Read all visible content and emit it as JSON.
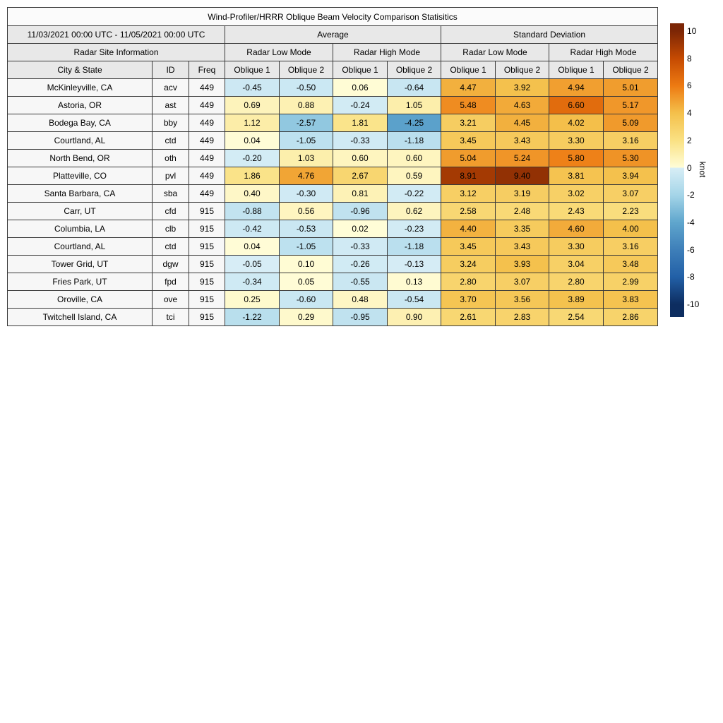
{
  "chart_data": {
    "type": "heatmap",
    "title": "Wind-Profiler/HRRR Oblique Beam Velocity Comparison Statisitics",
    "period": "11/03/2021 00:00 UTC - 11/05/2021 00:00 UTC",
    "stat_groups": [
      "Average",
      "Standard Deviation"
    ],
    "mode_headers": [
      "Radar Site Information",
      "Radar Low Mode",
      "Radar High Mode",
      "Radar Low Mode",
      "Radar High Mode"
    ],
    "info_columns": [
      "City & State",
      "ID",
      "Freq"
    ],
    "beam_columns": [
      "Oblique 1",
      "Oblique 2",
      "Oblique 1",
      "Oblique 2",
      "Oblique 1",
      "Oblique 2",
      "Oblique 1",
      "Oblique 2"
    ],
    "rows": [
      {
        "city": "McKinleyville, CA",
        "id": "acv",
        "freq": "449",
        "values": [
          -0.45,
          -0.5,
          0.06,
          -0.64,
          4.47,
          3.92,
          4.94,
          5.01
        ]
      },
      {
        "city": "Astoria, OR",
        "id": "ast",
        "freq": "449",
        "values": [
          0.69,
          0.88,
          -0.24,
          1.05,
          5.48,
          4.63,
          6.6,
          5.17
        ]
      },
      {
        "city": "Bodega Bay, CA",
        "id": "bby",
        "freq": "449",
        "values": [
          1.12,
          -2.57,
          1.81,
          -4.25,
          3.21,
          4.45,
          4.02,
          5.09
        ]
      },
      {
        "city": "Courtland, AL",
        "id": "ctd",
        "freq": "449",
        "values": [
          0.04,
          -1.05,
          -0.33,
          -1.18,
          3.45,
          3.43,
          3.3,
          3.16
        ]
      },
      {
        "city": "North Bend, OR",
        "id": "oth",
        "freq": "449",
        "values": [
          -0.2,
          1.03,
          0.6,
          0.6,
          5.04,
          5.24,
          5.8,
          5.3
        ]
      },
      {
        "city": "Platteville, CO",
        "id": "pvl",
        "freq": "449",
        "values": [
          1.86,
          4.76,
          2.67,
          0.59,
          8.91,
          9.4,
          3.81,
          3.94
        ]
      },
      {
        "city": "Santa Barbara, CA",
        "id": "sba",
        "freq": "449",
        "values": [
          0.4,
          -0.3,
          0.81,
          -0.22,
          3.12,
          3.19,
          3.02,
          3.07
        ]
      },
      {
        "city": "Carr, UT",
        "id": "cfd",
        "freq": "915",
        "values": [
          -0.88,
          0.56,
          -0.96,
          0.62,
          2.58,
          2.48,
          2.43,
          2.23
        ]
      },
      {
        "city": "Columbia, LA",
        "id": "clb",
        "freq": "915",
        "values": [
          -0.42,
          -0.53,
          0.02,
          -0.23,
          4.4,
          3.35,
          4.6,
          4.0
        ]
      },
      {
        "city": "Courtland, AL",
        "id": "ctd",
        "freq": "915",
        "values": [
          0.04,
          -1.05,
          -0.33,
          -1.18,
          3.45,
          3.43,
          3.3,
          3.16
        ]
      },
      {
        "city": "Tower Grid, UT",
        "id": "dgw",
        "freq": "915",
        "values": [
          -0.05,
          0.1,
          -0.26,
          -0.13,
          3.24,
          3.93,
          3.04,
          3.48
        ]
      },
      {
        "city": "Fries Park, UT",
        "id": "fpd",
        "freq": "915",
        "values": [
          -0.34,
          0.05,
          -0.55,
          0.13,
          2.8,
          3.07,
          2.8,
          2.99
        ]
      },
      {
        "city": "Oroville, CA",
        "id": "ove",
        "freq": "915",
        "values": [
          0.25,
          -0.6,
          0.48,
          -0.54,
          3.7,
          3.56,
          3.89,
          3.83
        ]
      },
      {
        "city": "Twitchell Island, CA",
        "id": "tci",
        "freq": "915",
        "values": [
          -1.22,
          0.29,
          -0.95,
          0.9,
          2.61,
          2.83,
          2.54,
          2.86
        ]
      }
    ],
    "colorbar": {
      "label": "knot",
      "min": -10,
      "max": 10,
      "ticks": [
        10,
        8,
        6,
        4,
        2,
        0,
        -2,
        -4,
        -6,
        -8,
        -10
      ],
      "positive_stops": [
        [
          0,
          "#FFFDD8"
        ],
        [
          2,
          "#FAE183"
        ],
        [
          4,
          "#F4C04B"
        ],
        [
          6,
          "#ED7A12"
        ],
        [
          8,
          "#C54A02"
        ],
        [
          10,
          "#7C2605"
        ]
      ],
      "negative_stops": [
        [
          0,
          "#D8EEF6"
        ],
        [
          -2,
          "#A5D5E8"
        ],
        [
          -4,
          "#5FA6CD"
        ],
        [
          -6,
          "#3E7FB9"
        ],
        [
          -8,
          "#2260A7"
        ],
        [
          -10,
          "#0D2D60"
        ]
      ]
    },
    "layout": {
      "grid": "table",
      "legend_position": "right-colorbar"
    }
  },
  "colors": {
    "border": "#3a3a3a",
    "header_bg": "#e8e8e8",
    "title_bg": "#fbfbfb",
    "info_cell_bg": "#f7f7f7",
    "text": "#000000",
    "page_bg": "#ffffff"
  }
}
